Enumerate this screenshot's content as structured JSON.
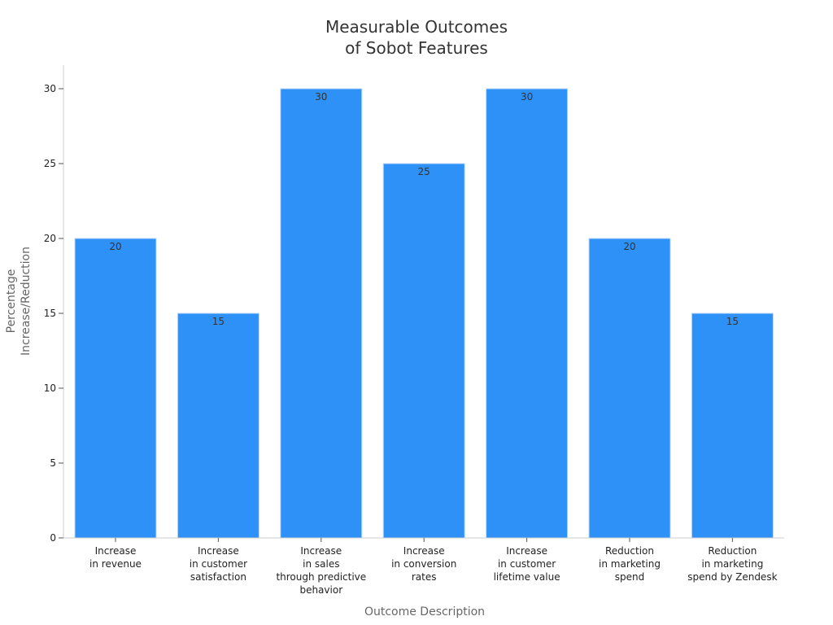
{
  "chart_data": {
    "type": "bar",
    "title": [
      "Measurable Outcomes",
      "of Sobot Features"
    ],
    "xlabel": "Outcome Description",
    "ylabel": [
      "Percentage",
      "Increase/Reduction"
    ],
    "categories": [
      [
        "Increase",
        "in revenue"
      ],
      [
        "Increase",
        "in customer",
        "satisfaction"
      ],
      [
        "Increase",
        "in sales",
        "through predictive",
        "behavior"
      ],
      [
        "Increase",
        "in conversion",
        "rates"
      ],
      [
        "Increase",
        "in customer",
        "lifetime value"
      ],
      [
        "Reduction",
        "in marketing",
        "spend"
      ],
      [
        "Reduction",
        "in marketing",
        "spend by Zendesk"
      ]
    ],
    "values": [
      20,
      15,
      30,
      25,
      30,
      20,
      15
    ],
    "data_labels": [
      "20",
      "15",
      "30",
      "25",
      "30",
      "20",
      "15"
    ],
    "ylim": [
      0,
      30
    ],
    "yticks": [
      0,
      5,
      10,
      15,
      20,
      25,
      30
    ],
    "grid": false,
    "legend": "none",
    "bar_color": "#2e91f7",
    "axis_color": "#cccccc"
  }
}
